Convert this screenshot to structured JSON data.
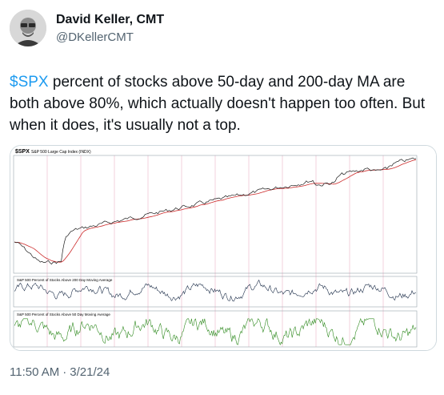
{
  "author": {
    "name": "David Keller, CMT",
    "handle": "@DKellerCMT",
    "avatar_icon": "profile-photo-icon"
  },
  "tweet": {
    "cashtag": "$SPX",
    "body": " percent of stocks above 50-day and 200-day MA are both above 80%, which actually doesn't happen too often. But when it does, it's usually not a top."
  },
  "chart_card": {
    "title": "$SPX",
    "subtitle": "S&P 500 Large Cap Index (INDX)",
    "panel2_label": "S&P 500 Percent of Stocks Above 200 Day Moving Average",
    "panel3_label": "S&P 500 Percent of Stocks Above 50 Day Moving Average",
    "colors": {
      "price_line": "#1b1b1b",
      "ma50_line": "#cc2b2b",
      "pct200_line": "#1e2f4a",
      "pct50_line": "#2f8a1f",
      "year_marker": "#e7a3b9"
    }
  },
  "timestamp": {
    "time": "11:50 AM",
    "separator": "·",
    "date": "3/21/24"
  }
}
